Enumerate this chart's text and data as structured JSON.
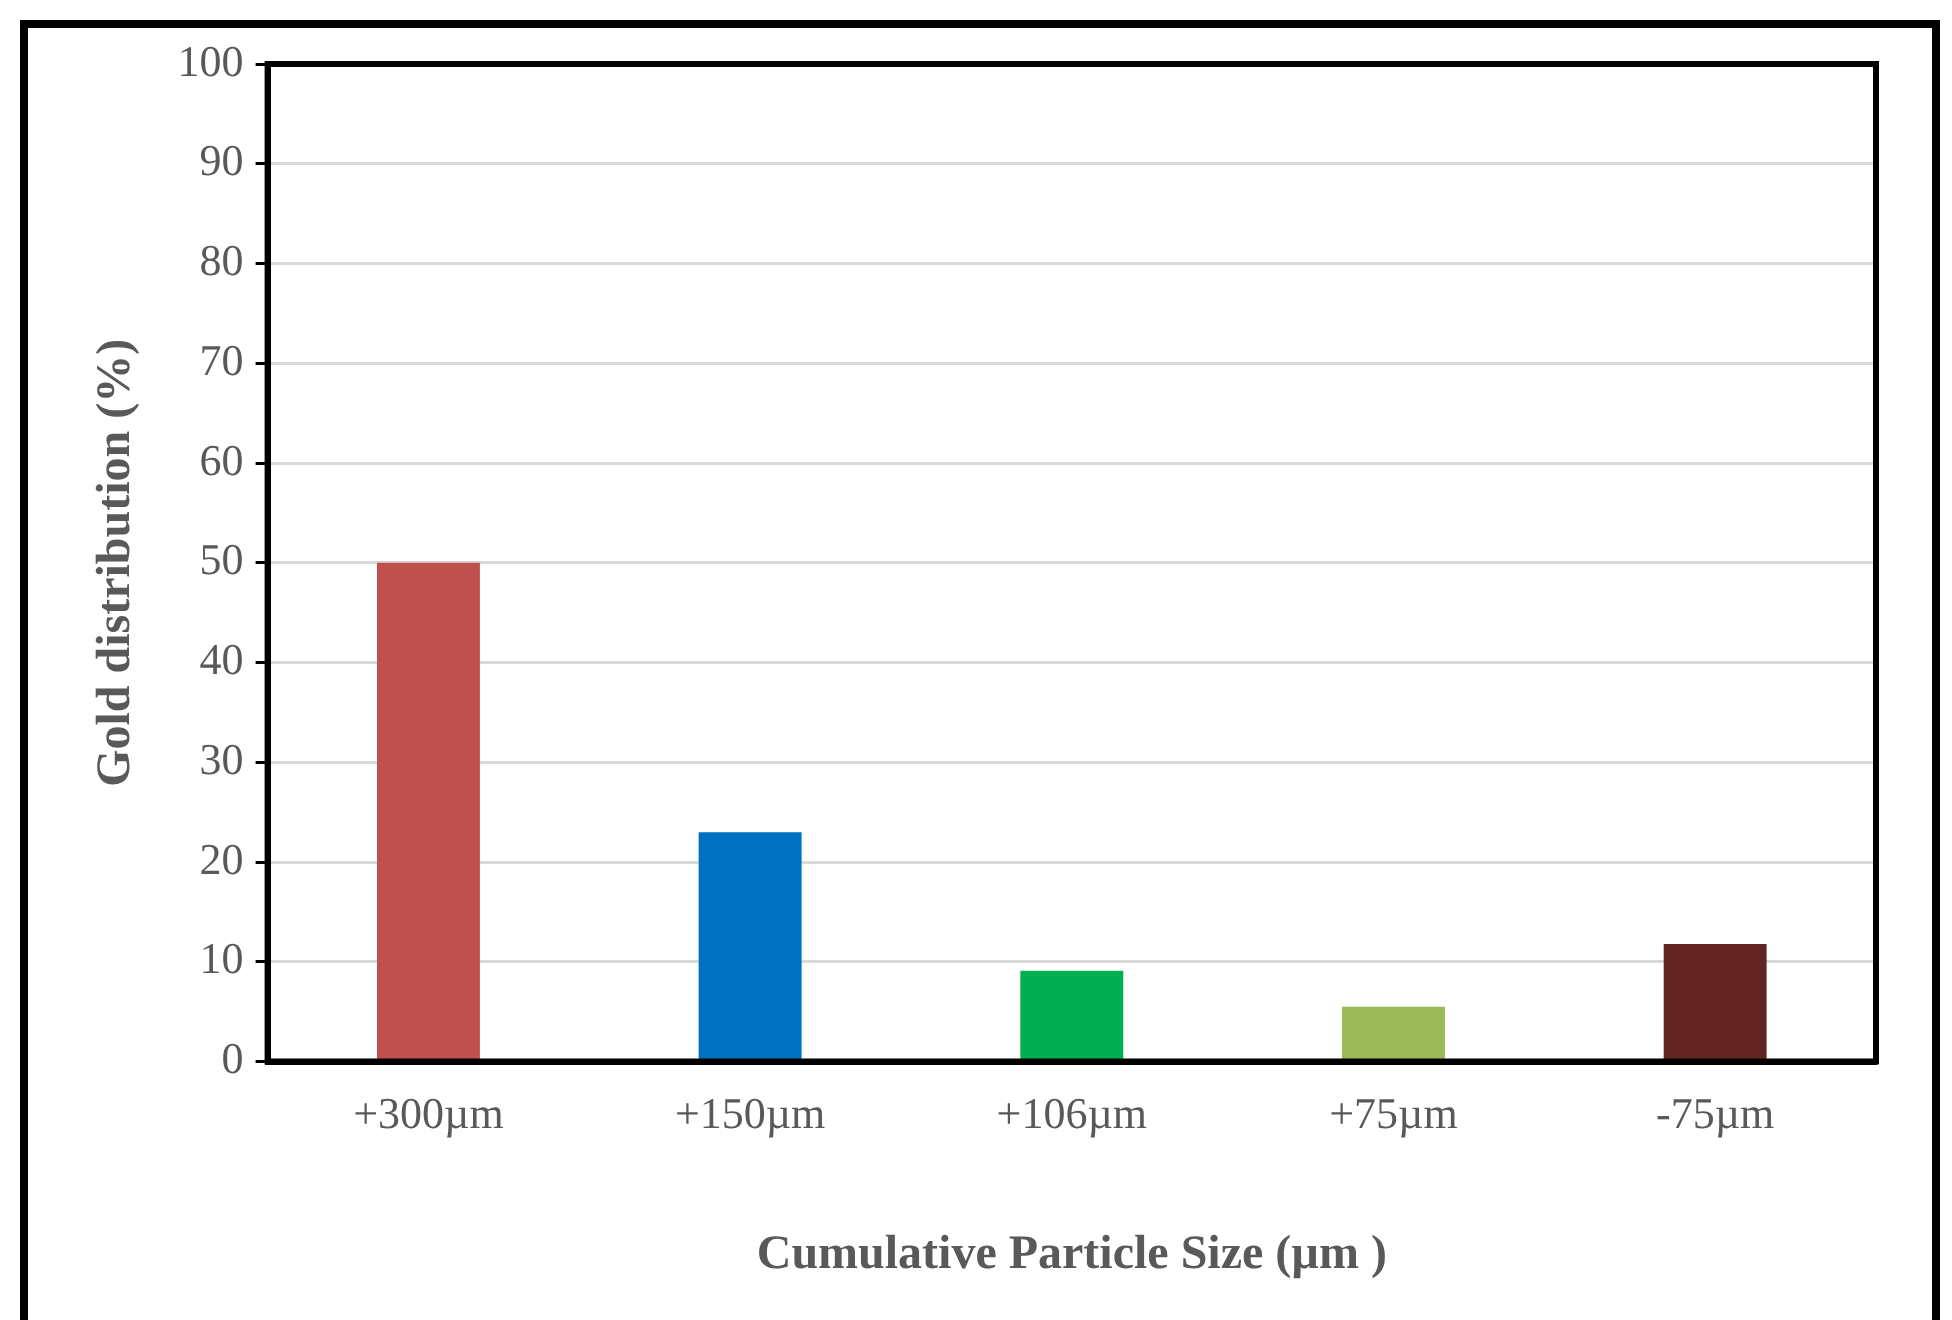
{
  "chart_data": {
    "type": "bar",
    "xlabel": "Cumulative Particle Size (µm )",
    "ylabel": "Gold distribution (%)",
    "categories": [
      "+300µm",
      "+150µm",
      "+106µm",
      "+75µm",
      "-75µm"
    ],
    "values": [
      50,
      23,
      9.1,
      5.5,
      11.8
    ],
    "colors": [
      "#c0504d",
      "#0070c0",
      "#00b050",
      "#9bbb59",
      "#632523"
    ],
    "ylim": [
      0,
      100
    ],
    "yticks": [
      0,
      10,
      20,
      30,
      40,
      50,
      60,
      70,
      80,
      90,
      100
    ],
    "grid": "y",
    "legend": false
  }
}
